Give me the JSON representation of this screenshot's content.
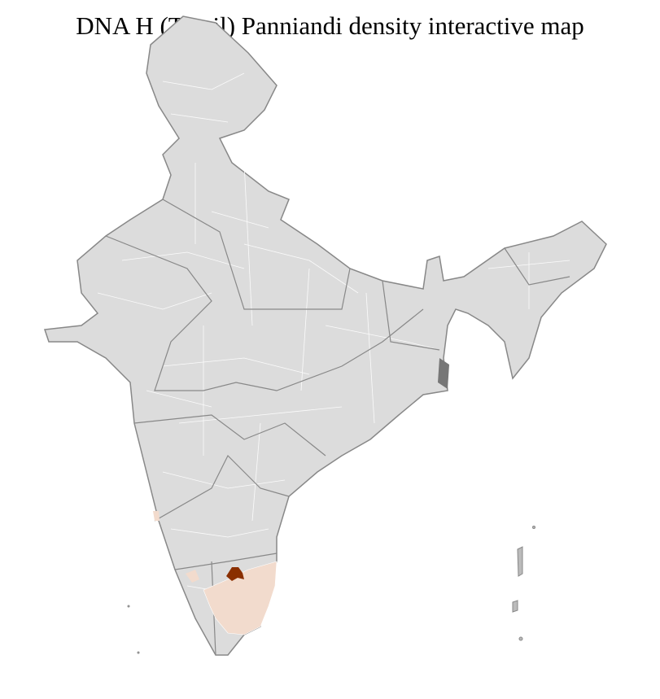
{
  "title": "DNA H (Tamil) Panniandi density interactive map",
  "colors": {
    "land": "#dcdcdc",
    "district_border": "#ffffff",
    "state_border": "#888888",
    "high_density": "#8a2f00",
    "low_density": "#f2dbcd"
  },
  "regions": [
    {
      "name": "Tamil Nadu districts",
      "density": "low"
    },
    {
      "name": "Salem area",
      "density": "high"
    },
    {
      "name": "Kerala / Karnataka coast",
      "density": "low"
    }
  ]
}
